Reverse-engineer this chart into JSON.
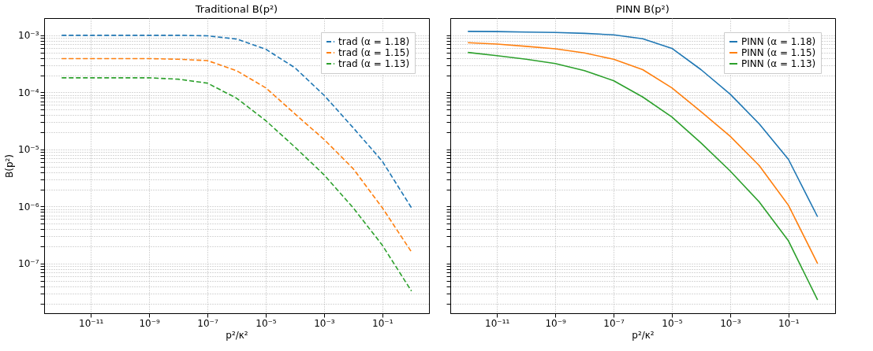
{
  "chart_data": [
    {
      "type": "line",
      "title": "Traditional B(p²)",
      "xlabel": "p²/κ²",
      "ylabel": "B(p²)",
      "log": "xy",
      "grid": true,
      "legend": "top right",
      "marker": "none",
      "xlim": [
        2.5e-13,
        4
      ],
      "ylim": [
        1.35e-08,
        0.002
      ],
      "xticks": [
        {
          "value": 1e-11,
          "label": "10⁻¹¹"
        },
        {
          "value": 1e-09,
          "label": "10⁻⁹"
        },
        {
          "value": 1e-07,
          "label": "10⁻⁷"
        },
        {
          "value": 1e-05,
          "label": "10⁻⁵"
        },
        {
          "value": 0.001,
          "label": "10⁻³"
        },
        {
          "value": 0.1,
          "label": "10⁻¹"
        }
      ],
      "yticks": [
        {
          "value": 1e-07,
          "label": "10⁻⁷"
        },
        {
          "value": 1e-06,
          "label": "10⁻⁶"
        },
        {
          "value": 1e-05,
          "label": "10⁻⁵"
        },
        {
          "value": 0.0001,
          "label": "10⁻⁴"
        },
        {
          "value": 0.001,
          "label": "10⁻³"
        },
        {
          "value": 2e-08,
          "label": null
        },
        {
          "value": 3e-08,
          "label": null
        },
        {
          "value": 4e-08,
          "label": null
        },
        {
          "value": 5e-08,
          "label": null
        },
        {
          "value": 6e-08,
          "label": null
        },
        {
          "value": 7e-08,
          "label": null
        },
        {
          "value": 8e-08,
          "label": null
        },
        {
          "value": 9e-08,
          "label": null
        },
        {
          "value": 2e-07,
          "label": null
        },
        {
          "value": 3e-07,
          "label": null
        },
        {
          "value": 4e-07,
          "label": null
        },
        {
          "value": 5e-07,
          "label": null
        },
        {
          "value": 6e-07,
          "label": null
        },
        {
          "value": 7e-07,
          "label": null
        },
        {
          "value": 8e-07,
          "label": null
        },
        {
          "value": 9e-07,
          "label": null
        },
        {
          "value": 2e-06,
          "label": null
        },
        {
          "value": 3e-06,
          "label": null
        },
        {
          "value": 4e-06,
          "label": null
        },
        {
          "value": 5e-06,
          "label": null
        },
        {
          "value": 6e-06,
          "label": null
        },
        {
          "value": 7e-06,
          "label": null
        },
        {
          "value": 8e-06,
          "label": null
        },
        {
          "value": 9e-06,
          "label": null
        },
        {
          "value": 2e-05,
          "label": null
        },
        {
          "value": 3e-05,
          "label": null
        },
        {
          "value": 4e-05,
          "label": null
        },
        {
          "value": 5e-05,
          "label": null
        },
        {
          "value": 6e-05,
          "label": null
        },
        {
          "value": 7e-05,
          "label": null
        },
        {
          "value": 8e-05,
          "label": null
        },
        {
          "value": 9e-05,
          "label": null
        },
        {
          "value": 0.0002,
          "label": null
        },
        {
          "value": 0.0003,
          "label": null
        },
        {
          "value": 0.0004,
          "label": null
        },
        {
          "value": 0.0005,
          "label": null
        },
        {
          "value": 0.0006,
          "label": null
        },
        {
          "value": 0.0007,
          "label": null
        },
        {
          "value": 0.0008,
          "label": null
        },
        {
          "value": 0.0009,
          "label": null
        }
      ],
      "x": [
        1e-12,
        1e-11,
        1e-10,
        1e-09,
        1e-08,
        1e-07,
        1e-06,
        1e-05,
        0.0001,
        0.001,
        0.01,
        0.1,
        1
      ],
      "series": [
        {
          "name": "trad (α = 1.18)",
          "color": "#1f77b4",
          "line_style": "dashed",
          "values": [
            0.001,
            0.001,
            0.001,
            0.001,
            0.001,
            0.00098,
            0.00086,
            0.00057,
            0.00027,
            8.9e-05,
            2.4e-05,
            6.2e-06,
            9.5e-07
          ]
        },
        {
          "name": "trad (α = 1.15)",
          "color": "#ff7f0e",
          "line_style": "dashed",
          "values": [
            0.00039,
            0.00039,
            0.00039,
            0.00039,
            0.00038,
            0.00036,
            0.00024,
            0.00012,
            4.2e-05,
            1.5e-05,
            4.6e-06,
            9.5e-07,
            1.6e-07
          ]
        },
        {
          "name": "trad (α = 1.13)",
          "color": "#2ca02c",
          "line_style": "dashed",
          "values": [
            0.00018,
            0.00018,
            0.00018,
            0.00018,
            0.00017,
            0.000145,
            7.9e-05,
            3.2e-05,
            1.1e-05,
            3.6e-06,
            9.5e-07,
            2.1e-07,
            3.3e-08
          ]
        }
      ]
    },
    {
      "type": "line",
      "title": "PINN B(p²)",
      "xlabel": "p²/κ²",
      "log": "xy",
      "grid": true,
      "legend": "top right",
      "marker": "none",
      "tick_labels": "x",
      "xlim": [
        2.5e-13,
        4
      ],
      "ylim": [
        1.35e-08,
        0.002
      ],
      "xticks": [
        {
          "value": 1e-11,
          "label": "10⁻¹¹"
        },
        {
          "value": 1e-09,
          "label": "10⁻⁹"
        },
        {
          "value": 1e-07,
          "label": "10⁻⁷"
        },
        {
          "value": 1e-05,
          "label": "10⁻⁵"
        },
        {
          "value": 0.001,
          "label": "10⁻³"
        },
        {
          "value": 0.1,
          "label": "10⁻¹"
        }
      ],
      "yticks": [
        {
          "value": 1e-07,
          "label": null
        },
        {
          "value": 1e-06,
          "label": null
        },
        {
          "value": 1e-05,
          "label": null
        },
        {
          "value": 0.0001,
          "label": null
        },
        {
          "value": 0.001,
          "label": null
        },
        {
          "value": 2e-08,
          "label": null
        },
        {
          "value": 3e-08,
          "label": null
        },
        {
          "value": 4e-08,
          "label": null
        },
        {
          "value": 5e-08,
          "label": null
        },
        {
          "value": 6e-08,
          "label": null
        },
        {
          "value": 7e-08,
          "label": null
        },
        {
          "value": 8e-08,
          "label": null
        },
        {
          "value": 9e-08,
          "label": null
        },
        {
          "value": 2e-07,
          "label": null
        },
        {
          "value": 3e-07,
          "label": null
        },
        {
          "value": 4e-07,
          "label": null
        },
        {
          "value": 5e-07,
          "label": null
        },
        {
          "value": 6e-07,
          "label": null
        },
        {
          "value": 7e-07,
          "label": null
        },
        {
          "value": 8e-07,
          "label": null
        },
        {
          "value": 9e-07,
          "label": null
        },
        {
          "value": 2e-06,
          "label": null
        },
        {
          "value": 3e-06,
          "label": null
        },
        {
          "value": 4e-06,
          "label": null
        },
        {
          "value": 5e-06,
          "label": null
        },
        {
          "value": 6e-06,
          "label": null
        },
        {
          "value": 7e-06,
          "label": null
        },
        {
          "value": 8e-06,
          "label": null
        },
        {
          "value": 9e-06,
          "label": null
        },
        {
          "value": 2e-05,
          "label": null
        },
        {
          "value": 3e-05,
          "label": null
        },
        {
          "value": 4e-05,
          "label": null
        },
        {
          "value": 5e-05,
          "label": null
        },
        {
          "value": 6e-05,
          "label": null
        },
        {
          "value": 7e-05,
          "label": null
        },
        {
          "value": 8e-05,
          "label": null
        },
        {
          "value": 9e-05,
          "label": null
        },
        {
          "value": 0.0002,
          "label": null
        },
        {
          "value": 0.0003,
          "label": null
        },
        {
          "value": 0.0004,
          "label": null
        },
        {
          "value": 0.0005,
          "label": null
        },
        {
          "value": 0.0006,
          "label": null
        },
        {
          "value": 0.0007,
          "label": null
        },
        {
          "value": 0.0008,
          "label": null
        },
        {
          "value": 0.0009,
          "label": null
        }
      ],
      "x": [
        1e-12,
        1e-11,
        1e-10,
        1e-09,
        1e-08,
        1e-07,
        1e-06,
        1e-05,
        0.0001,
        0.001,
        0.01,
        0.1,
        1
      ],
      "series": [
        {
          "name": "PINN (α = 1.18)",
          "color": "#1f77b4",
          "line_style": "solid",
          "values": [
            0.00117,
            0.00116,
            0.00114,
            0.00112,
            0.00108,
            0.00102,
            0.00087,
            0.00059,
            0.00025,
            9.3e-05,
            2.8e-05,
            6.7e-06,
            6.6e-07
          ]
        },
        {
          "name": "PINN (α = 1.15)",
          "color": "#ff7f0e",
          "line_style": "solid",
          "values": [
            0.00074,
            0.0007,
            0.00064,
            0.00058,
            0.00049,
            0.00038,
            0.00025,
            0.00012,
            4.6e-05,
            1.7e-05,
            5.2e-06,
            1.05e-06,
            1e-07
          ]
        },
        {
          "name": "PINN (α = 1.13)",
          "color": "#2ca02c",
          "line_style": "solid",
          "values": [
            0.0005,
            0.00044,
            0.00038,
            0.00032,
            0.00024,
            0.00016,
            8.3e-05,
            3.7e-05,
            1.3e-05,
            4.2e-06,
            1.2e-06,
            2.5e-07,
            2.3e-08
          ]
        }
      ]
    }
  ]
}
